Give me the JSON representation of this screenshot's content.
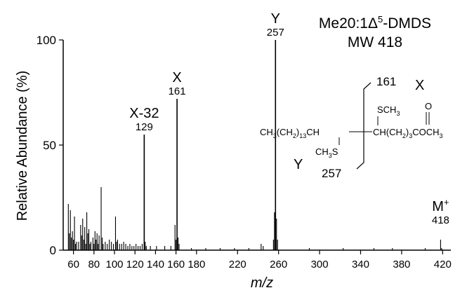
{
  "chart_data": {
    "type": "bar",
    "title": "Me20:1Δ⁵-DMDS",
    "title_parts": {
      "prefix": "Me20:1",
      "delta": "Δ",
      "superscript": "5",
      "suffix": "-DMDS"
    },
    "subtitle": "MW 418",
    "xlabel": "m/z",
    "ylabel": "Relative Abundance (%)",
    "xlim": [
      50,
      428
    ],
    "ylim": [
      0,
      100
    ],
    "x_ticks": [
      60,
      80,
      100,
      120,
      140,
      160,
      180,
      220,
      260,
      300,
      340,
      380,
      420
    ],
    "y_ticks": [
      0,
      50,
      100
    ],
    "grid": false,
    "legend": "none",
    "peaks": [
      {
        "x": 55,
        "y": 22
      },
      {
        "x": 56,
        "y": 8
      },
      {
        "x": 57,
        "y": 19
      },
      {
        "x": 58,
        "y": 6
      },
      {
        "x": 59,
        "y": 9
      },
      {
        "x": 60,
        "y": 5
      },
      {
        "x": 61,
        "y": 16
      },
      {
        "x": 62,
        "y": 3
      },
      {
        "x": 63,
        "y": 4
      },
      {
        "x": 65,
        "y": 4
      },
      {
        "x": 67,
        "y": 12
      },
      {
        "x": 68,
        "y": 7
      },
      {
        "x": 69,
        "y": 15
      },
      {
        "x": 70,
        "y": 5
      },
      {
        "x": 71,
        "y": 11
      },
      {
        "x": 72,
        "y": 3
      },
      {
        "x": 73,
        "y": 18
      },
      {
        "x": 74,
        "y": 8
      },
      {
        "x": 75,
        "y": 10
      },
      {
        "x": 76,
        "y": 3
      },
      {
        "x": 77,
        "y": 4
      },
      {
        "x": 79,
        "y": 6
      },
      {
        "x": 80,
        "y": 3
      },
      {
        "x": 81,
        "y": 9
      },
      {
        "x": 82,
        "y": 5
      },
      {
        "x": 83,
        "y": 8
      },
      {
        "x": 84,
        "y": 3
      },
      {
        "x": 85,
        "y": 7
      },
      {
        "x": 87,
        "y": 30
      },
      {
        "x": 88,
        "y": 6
      },
      {
        "x": 89,
        "y": 3
      },
      {
        "x": 91,
        "y": 4
      },
      {
        "x": 93,
        "y": 3
      },
      {
        "x": 95,
        "y": 5
      },
      {
        "x": 97,
        "y": 4
      },
      {
        "x": 99,
        "y": 3
      },
      {
        "x": 101,
        "y": 16
      },
      {
        "x": 102,
        "y": 4
      },
      {
        "x": 103,
        "y": 5
      },
      {
        "x": 105,
        "y": 3
      },
      {
        "x": 107,
        "y": 3
      },
      {
        "x": 109,
        "y": 4
      },
      {
        "x": 111,
        "y": 3
      },
      {
        "x": 113,
        "y": 2
      },
      {
        "x": 115,
        "y": 3
      },
      {
        "x": 117,
        "y": 2
      },
      {
        "x": 119,
        "y": 2
      },
      {
        "x": 121,
        "y": 3
      },
      {
        "x": 123,
        "y": 2
      },
      {
        "x": 125,
        "y": 2
      },
      {
        "x": 127,
        "y": 3
      },
      {
        "x": 129,
        "y": 55
      },
      {
        "x": 130,
        "y": 4
      },
      {
        "x": 131,
        "y": 2
      },
      {
        "x": 135,
        "y": 2
      },
      {
        "x": 141,
        "y": 2
      },
      {
        "x": 149,
        "y": 2
      },
      {
        "x": 155,
        "y": 2
      },
      {
        "x": 159,
        "y": 12
      },
      {
        "x": 160,
        "y": 5
      },
      {
        "x": 161,
        "y": 72
      },
      {
        "x": 162,
        "y": 6
      },
      {
        "x": 163,
        "y": 3
      },
      {
        "x": 175,
        "y": 1
      },
      {
        "x": 189,
        "y": 1
      },
      {
        "x": 203,
        "y": 1
      },
      {
        "x": 217,
        "y": 1
      },
      {
        "x": 231,
        "y": 1
      },
      {
        "x": 243,
        "y": 3
      },
      {
        "x": 245,
        "y": 2
      },
      {
        "x": 255,
        "y": 5
      },
      {
        "x": 256,
        "y": 18
      },
      {
        "x": 257,
        "y": 100
      },
      {
        "x": 258,
        "y": 15
      },
      {
        "x": 259,
        "y": 5
      },
      {
        "x": 290,
        "y": 1
      },
      {
        "x": 323,
        "y": 1
      },
      {
        "x": 353,
        "y": 1
      },
      {
        "x": 371,
        "y": 1
      },
      {
        "x": 403,
        "y": 1
      },
      {
        "x": 418,
        "y": 5
      },
      {
        "x": 419,
        "y": 1
      }
    ],
    "annotations": [
      {
        "name": "X",
        "mz": "161",
        "at_x": 161,
        "at_y": 72
      },
      {
        "name": "Y",
        "mz": "257",
        "at_x": 257,
        "at_y": 100
      },
      {
        "name": "X-32",
        "mz": "129",
        "at_x": 129,
        "at_y": 55
      }
    ],
    "molecular_ion": {
      "label": "M",
      "superscript": "+",
      "mz": "418",
      "at_x": 418,
      "at_y": 5
    }
  },
  "structure": {
    "left_group": {
      "prefix": "CH",
      "sub1": "3",
      "mid": "(CH",
      "sub2": "2",
      "close": ")",
      "sub3": "13",
      "end": "CH"
    },
    "top_sub": {
      "prefix": "SCH",
      "sub": "3"
    },
    "bottom_sub": {
      "prefix": "CH",
      "sub": "3",
      "suffix": "S"
    },
    "right_group": {
      "prefix": "CH(CH",
      "sub1": "2",
      "close": ")",
      "sub2": "3",
      "mid": "COCH",
      "sub3": "3"
    },
    "carbonyl_o": "O",
    "cleavage_top_mz": "161",
    "cleavage_top_label": "X",
    "cleavage_bottom_mz": "257",
    "cleavage_bottom_label": "Y"
  }
}
